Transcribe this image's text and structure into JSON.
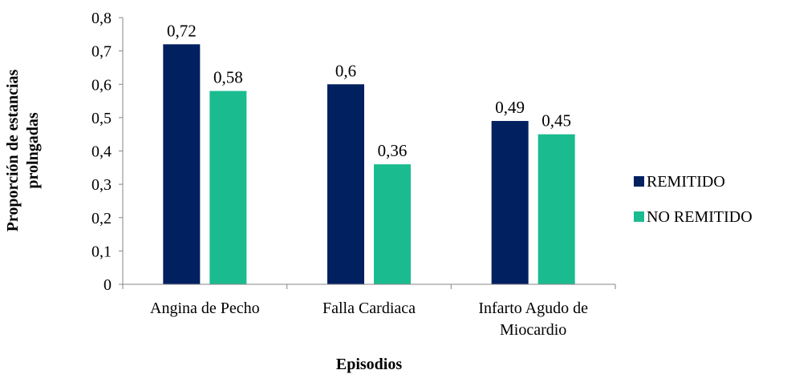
{
  "chart_data": {
    "type": "bar",
    "categories": [
      [
        "Angina de Pecho"
      ],
      [
        "Falla Cardiaca"
      ],
      [
        "Infarto Agudo de",
        "Miocardio"
      ]
    ],
    "series": [
      {
        "name": "REMITIDO",
        "values": [
          0.72,
          0.6,
          0.49
        ],
        "value_labels": [
          "0,72",
          "0,6",
          "0,49"
        ],
        "color": "#002060"
      },
      {
        "name": "NO REMITIDO",
        "values": [
          0.58,
          0.36,
          0.45
        ],
        "value_labels": [
          "0,58",
          "0,36",
          "0,45"
        ],
        "color": "#1ABC8F"
      }
    ],
    "ylim": [
      0,
      0.8
    ],
    "yticks": [
      0,
      0.1,
      0.2,
      0.3,
      0.4,
      0.5,
      0.6,
      0.7,
      0.8
    ],
    "ytick_labels": [
      "0",
      "0,1",
      "0,2",
      "0,3",
      "0,4",
      "0,5",
      "0,6",
      "0,7",
      "0,8"
    ],
    "xlabel": "Episodios",
    "ylabel": [
      "Proporción de estancias",
      "prolngadas"
    ],
    "grid": false,
    "legend_position": "right"
  }
}
